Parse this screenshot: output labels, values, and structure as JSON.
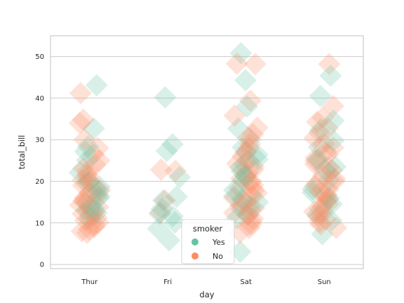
{
  "chart_data": {
    "type": "scatter",
    "subtype": "stripplot",
    "xlabel": "day",
    "ylabel": "total_bill",
    "categories": [
      "Thur",
      "Fri",
      "Sat",
      "Sun"
    ],
    "ylim": [
      -1,
      55
    ],
    "yticks": [
      0,
      10,
      20,
      30,
      40,
      50
    ],
    "grid": "horizontal",
    "marker": "diamond",
    "legend": {
      "title": "smoker",
      "position": "bottom-center"
    },
    "series": [
      {
        "name": "Yes",
        "color": "#66c2a5",
        "points": [
          {
            "x": "Thur",
            "y": 43.1
          },
          {
            "x": "Thur",
            "y": 32.7
          },
          {
            "x": "Thur",
            "y": 28.4
          },
          {
            "x": "Thur",
            "y": 27.2
          },
          {
            "x": "Thur",
            "y": 25.1
          },
          {
            "x": "Thur",
            "y": 22.1
          },
          {
            "x": "Thur",
            "y": 20.0
          },
          {
            "x": "Thur",
            "y": 19.6
          },
          {
            "x": "Thur",
            "y": 18.7
          },
          {
            "x": "Thur",
            "y": 17.6
          },
          {
            "x": "Thur",
            "y": 16.3
          },
          {
            "x": "Thur",
            "y": 15.9
          },
          {
            "x": "Thur",
            "y": 14.8
          },
          {
            "x": "Thur",
            "y": 13.5
          },
          {
            "x": "Thur",
            "y": 13.1
          },
          {
            "x": "Thur",
            "y": 12.4
          },
          {
            "x": "Thur",
            "y": 11.0
          },
          {
            "x": "Fri",
            "y": 40.2
          },
          {
            "x": "Fri",
            "y": 28.9
          },
          {
            "x": "Fri",
            "y": 27.3
          },
          {
            "x": "Fri",
            "y": 21.0
          },
          {
            "x": "Fri",
            "y": 16.3
          },
          {
            "x": "Fri",
            "y": 15.4
          },
          {
            "x": "Fri",
            "y": 13.4
          },
          {
            "x": "Fri",
            "y": 12.2
          },
          {
            "x": "Fri",
            "y": 11.6
          },
          {
            "x": "Fri",
            "y": 10.1
          },
          {
            "x": "Fri",
            "y": 8.6
          },
          {
            "x": "Fri",
            "y": 5.8
          },
          {
            "x": "Sat",
            "y": 50.8
          },
          {
            "x": "Sat",
            "y": 44.3
          },
          {
            "x": "Sat",
            "y": 38.0
          },
          {
            "x": "Sat",
            "y": 32.7
          },
          {
            "x": "Sat",
            "y": 30.1
          },
          {
            "x": "Sat",
            "y": 28.2
          },
          {
            "x": "Sat",
            "y": 27.0
          },
          {
            "x": "Sat",
            "y": 26.4
          },
          {
            "x": "Sat",
            "y": 25.3
          },
          {
            "x": "Sat",
            "y": 24.1
          },
          {
            "x": "Sat",
            "y": 23.3
          },
          {
            "x": "Sat",
            "y": 22.4
          },
          {
            "x": "Sat",
            "y": 21.0
          },
          {
            "x": "Sat",
            "y": 20.1
          },
          {
            "x": "Sat",
            "y": 17.9
          },
          {
            "x": "Sat",
            "y": 16.5
          },
          {
            "x": "Sat",
            "y": 15.7
          },
          {
            "x": "Sat",
            "y": 15.0
          },
          {
            "x": "Sat",
            "y": 14.0
          },
          {
            "x": "Sat",
            "y": 13.3
          },
          {
            "x": "Sat",
            "y": 12.0
          },
          {
            "x": "Sat",
            "y": 11.2
          },
          {
            "x": "Sat",
            "y": 3.1
          },
          {
            "x": "Sun",
            "y": 45.4
          },
          {
            "x": "Sun",
            "y": 40.5
          },
          {
            "x": "Sun",
            "y": 34.6
          },
          {
            "x": "Sun",
            "y": 32.4
          },
          {
            "x": "Sun",
            "y": 29.8
          },
          {
            "x": "Sun",
            "y": 28.2
          },
          {
            "x": "Sun",
            "y": 25.3
          },
          {
            "x": "Sun",
            "y": 23.5
          },
          {
            "x": "Sun",
            "y": 22.8
          },
          {
            "x": "Sun",
            "y": 20.3
          },
          {
            "x": "Sun",
            "y": 18.1
          },
          {
            "x": "Sun",
            "y": 17.3
          },
          {
            "x": "Sun",
            "y": 15.9
          },
          {
            "x": "Sun",
            "y": 14.5
          },
          {
            "x": "Sun",
            "y": 12.0
          },
          {
            "x": "Sun",
            "y": 10.6
          },
          {
            "x": "Sun",
            "y": 7.3
          }
        ]
      },
      {
        "name": "No",
        "color": "#fc8d62",
        "points": [
          {
            "x": "Thur",
            "y": 41.2
          },
          {
            "x": "Thur",
            "y": 34.8
          },
          {
            "x": "Thur",
            "y": 34.0
          },
          {
            "x": "Thur",
            "y": 30.0
          },
          {
            "x": "Thur",
            "y": 28.0
          },
          {
            "x": "Thur",
            "y": 26.5
          },
          {
            "x": "Thur",
            "y": 25.0
          },
          {
            "x": "Thur",
            "y": 24.0
          },
          {
            "x": "Thur",
            "y": 23.1
          },
          {
            "x": "Thur",
            "y": 22.5
          },
          {
            "x": "Thur",
            "y": 21.6
          },
          {
            "x": "Thur",
            "y": 21.0
          },
          {
            "x": "Thur",
            "y": 20.3
          },
          {
            "x": "Thur",
            "y": 19.8
          },
          {
            "x": "Thur",
            "y": 19.0
          },
          {
            "x": "Thur",
            "y": 18.4
          },
          {
            "x": "Thur",
            "y": 17.9
          },
          {
            "x": "Thur",
            "y": 17.2
          },
          {
            "x": "Thur",
            "y": 16.6
          },
          {
            "x": "Thur",
            "y": 16.0
          },
          {
            "x": "Thur",
            "y": 15.4
          },
          {
            "x": "Thur",
            "y": 15.0
          },
          {
            "x": "Thur",
            "y": 14.3
          },
          {
            "x": "Thur",
            "y": 13.8
          },
          {
            "x": "Thur",
            "y": 13.2
          },
          {
            "x": "Thur",
            "y": 12.7
          },
          {
            "x": "Thur",
            "y": 12.2
          },
          {
            "x": "Thur",
            "y": 11.7
          },
          {
            "x": "Thur",
            "y": 11.2
          },
          {
            "x": "Thur",
            "y": 10.6
          },
          {
            "x": "Thur",
            "y": 10.1
          },
          {
            "x": "Thur",
            "y": 9.6
          },
          {
            "x": "Thur",
            "y": 9.0
          },
          {
            "x": "Thur",
            "y": 8.5
          },
          {
            "x": "Thur",
            "y": 8.0
          },
          {
            "x": "Thur",
            "y": 7.6
          },
          {
            "x": "Fri",
            "y": 22.8
          },
          {
            "x": "Fri",
            "y": 22.5
          },
          {
            "x": "Fri",
            "y": 15.4
          },
          {
            "x": "Fri",
            "y": 12.5
          },
          {
            "x": "Sat",
            "y": 48.3
          },
          {
            "x": "Sat",
            "y": 48.2
          },
          {
            "x": "Sat",
            "y": 39.4
          },
          {
            "x": "Sat",
            "y": 35.8
          },
          {
            "x": "Sat",
            "y": 32.9
          },
          {
            "x": "Sat",
            "y": 31.3
          },
          {
            "x": "Sat",
            "y": 30.5
          },
          {
            "x": "Sat",
            "y": 29.0
          },
          {
            "x": "Sat",
            "y": 28.0
          },
          {
            "x": "Sat",
            "y": 27.1
          },
          {
            "x": "Sat",
            "y": 26.0
          },
          {
            "x": "Sat",
            "y": 25.0
          },
          {
            "x": "Sat",
            "y": 24.3
          },
          {
            "x": "Sat",
            "y": 23.6
          },
          {
            "x": "Sat",
            "y": 22.8
          },
          {
            "x": "Sat",
            "y": 22.0
          },
          {
            "x": "Sat",
            "y": 21.4
          },
          {
            "x": "Sat",
            "y": 20.7
          },
          {
            "x": "Sat",
            "y": 20.1
          },
          {
            "x": "Sat",
            "y": 19.5
          },
          {
            "x": "Sat",
            "y": 19.0
          },
          {
            "x": "Sat",
            "y": 18.4
          },
          {
            "x": "Sat",
            "y": 17.8
          },
          {
            "x": "Sat",
            "y": 17.2
          },
          {
            "x": "Sat",
            "y": 16.6
          },
          {
            "x": "Sat",
            "y": 16.0
          },
          {
            "x": "Sat",
            "y": 15.4
          },
          {
            "x": "Sat",
            "y": 14.8
          },
          {
            "x": "Sat",
            "y": 14.2
          },
          {
            "x": "Sat",
            "y": 13.6
          },
          {
            "x": "Sat",
            "y": 13.0
          },
          {
            "x": "Sat",
            "y": 12.4
          },
          {
            "x": "Sat",
            "y": 11.8
          },
          {
            "x": "Sat",
            "y": 11.0
          },
          {
            "x": "Sat",
            "y": 10.3
          },
          {
            "x": "Sat",
            "y": 9.6
          },
          {
            "x": "Sat",
            "y": 8.8
          },
          {
            "x": "Sat",
            "y": 7.7
          },
          {
            "x": "Sun",
            "y": 48.2
          },
          {
            "x": "Sun",
            "y": 38.1
          },
          {
            "x": "Sun",
            "y": 35.3
          },
          {
            "x": "Sun",
            "y": 34.3
          },
          {
            "x": "Sun",
            "y": 32.8
          },
          {
            "x": "Sun",
            "y": 31.7
          },
          {
            "x": "Sun",
            "y": 30.4
          },
          {
            "x": "Sun",
            "y": 29.0
          },
          {
            "x": "Sun",
            "y": 28.1
          },
          {
            "x": "Sun",
            "y": 27.2
          },
          {
            "x": "Sun",
            "y": 26.4
          },
          {
            "x": "Sun",
            "y": 25.6
          },
          {
            "x": "Sun",
            "y": 24.9
          },
          {
            "x": "Sun",
            "y": 24.1
          },
          {
            "x": "Sun",
            "y": 23.4
          },
          {
            "x": "Sun",
            "y": 22.7
          },
          {
            "x": "Sun",
            "y": 22.0
          },
          {
            "x": "Sun",
            "y": 21.3
          },
          {
            "x": "Sun",
            "y": 20.6
          },
          {
            "x": "Sun",
            "y": 20.0
          },
          {
            "x": "Sun",
            "y": 19.4
          },
          {
            "x": "Sun",
            "y": 18.8
          },
          {
            "x": "Sun",
            "y": 18.1
          },
          {
            "x": "Sun",
            "y": 17.5
          },
          {
            "x": "Sun",
            "y": 16.9
          },
          {
            "x": "Sun",
            "y": 16.3
          },
          {
            "x": "Sun",
            "y": 15.7
          },
          {
            "x": "Sun",
            "y": 15.1
          },
          {
            "x": "Sun",
            "y": 14.5
          },
          {
            "x": "Sun",
            "y": 13.9
          },
          {
            "x": "Sun",
            "y": 13.3
          },
          {
            "x": "Sun",
            "y": 12.7
          },
          {
            "x": "Sun",
            "y": 12.1
          },
          {
            "x": "Sun",
            "y": 11.5
          },
          {
            "x": "Sun",
            "y": 10.9
          },
          {
            "x": "Sun",
            "y": 10.3
          },
          {
            "x": "Sun",
            "y": 9.6
          },
          {
            "x": "Sun",
            "y": 8.8
          }
        ]
      }
    ]
  }
}
